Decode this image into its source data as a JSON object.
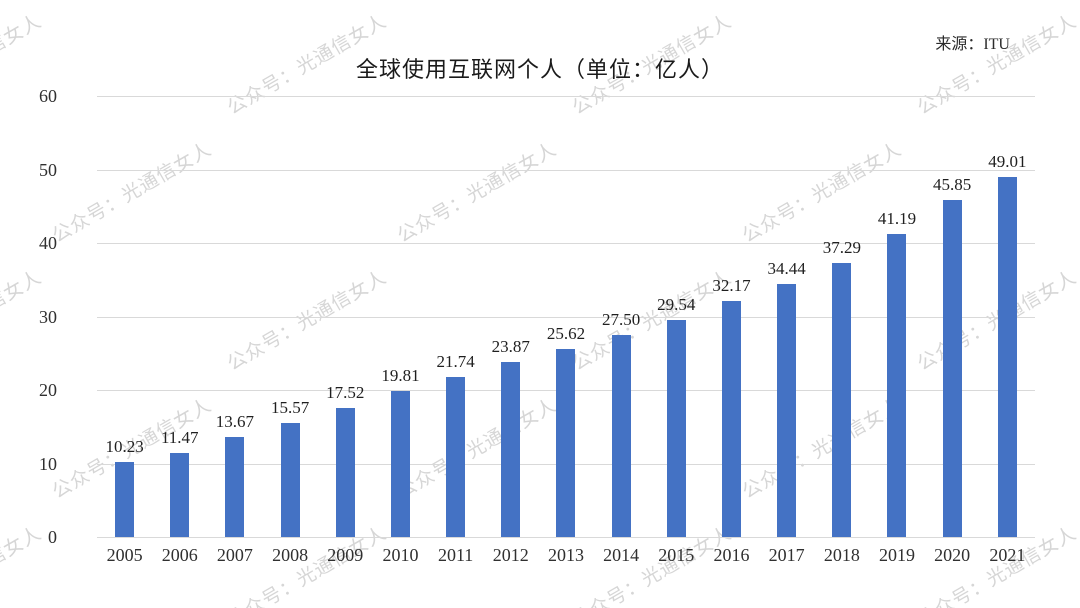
{
  "source_label": "来源：ITU",
  "watermark": {
    "text": "公众号：光通信女人",
    "color": "#d6d6d6"
  },
  "chart_data": {
    "type": "bar",
    "title": "全球使用互联网个人（单位：亿人）",
    "categories": [
      "2005",
      "2006",
      "2007",
      "2008",
      "2009",
      "2010",
      "2011",
      "2012",
      "2013",
      "2014",
      "2015",
      "2016",
      "2017",
      "2018",
      "2019",
      "2020",
      "2021"
    ],
    "values": [
      10.23,
      11.47,
      13.67,
      15.57,
      17.52,
      19.81,
      21.74,
      23.87,
      25.62,
      27.5,
      29.54,
      32.17,
      34.44,
      37.29,
      41.19,
      45.85,
      49.01
    ],
    "value_labels": [
      "10.23",
      "11.47",
      "13.67",
      "15.57",
      "17.52",
      "19.81",
      "21.74",
      "23.87",
      "25.62",
      "27.50",
      "29.54",
      "32.17",
      "34.44",
      "37.29",
      "41.19",
      "45.85",
      "49.01"
    ],
    "xlabel": "",
    "ylabel": "",
    "ylim": [
      0,
      60
    ],
    "yticks": [
      0,
      10,
      20,
      30,
      40,
      50,
      60
    ],
    "grid": true,
    "legend": false,
    "bar_color": "#4472C4",
    "gridline_color": "#d9d9d9",
    "source": "来源：ITU"
  }
}
